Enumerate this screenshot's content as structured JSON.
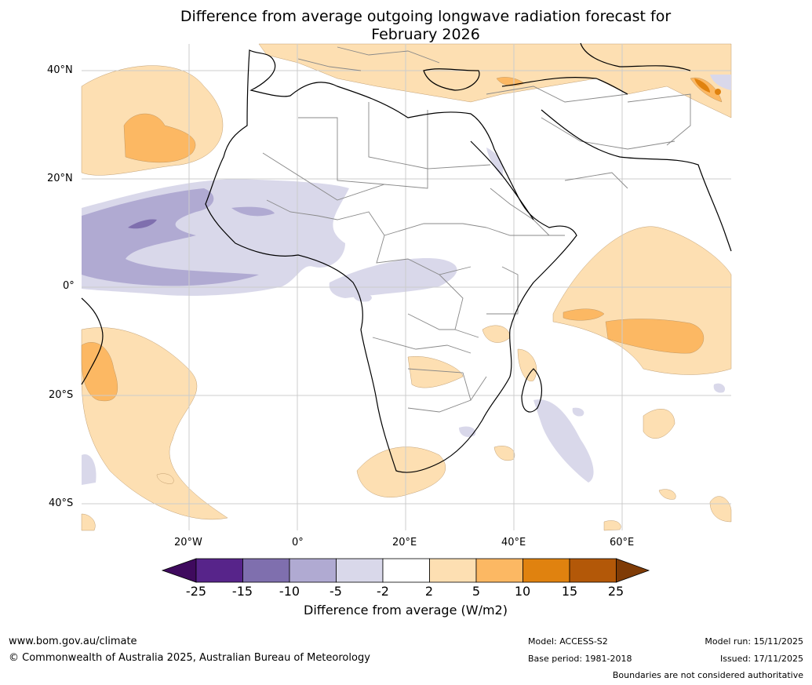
{
  "title_line1": "Difference from average outgoing longwave radiation forecast for",
  "title_line2": "February 2026",
  "lat_labels": [
    "40°N",
    "20°N",
    "0°",
    "20°S",
    "40°S"
  ],
  "lon_labels": [
    "20°W",
    "0°",
    "20°E",
    "40°E",
    "60°E"
  ],
  "colorbar": {
    "title": "Difference from average (W/m2)",
    "ticks": [
      "-25",
      "-15",
      "-10",
      "-5",
      "-2",
      "2",
      "5",
      "10",
      "15",
      "25"
    ],
    "colors": [
      "#3f0a5e",
      "#57248a",
      "#7f6fae",
      "#b0aad2",
      "#d9d8ea",
      "#ffffff",
      "#fddfb2",
      "#fcb863",
      "#e0820f",
      "#b35808",
      "#7f3b06"
    ]
  },
  "footer": {
    "website": "www.bom.gov.au/climate",
    "copyright": "© Commonwealth of Australia 2025, Australian Bureau of Meteorology",
    "model": "Model: ACCESS-S2",
    "base_period": "Base period: 1981-2018",
    "model_run": "Model run: 15/11/2025",
    "issued": "Issued: 17/11/2025",
    "disclaimer": "Boundaries are not considered authoritative"
  }
}
